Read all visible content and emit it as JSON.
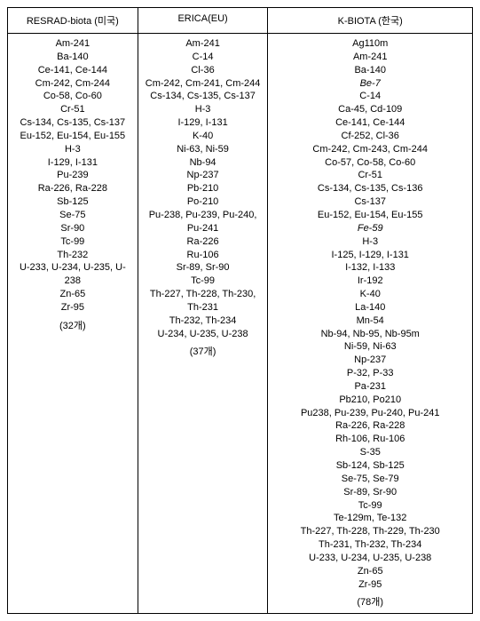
{
  "headers": {
    "col1": "RESRAD-biota (미국)",
    "col2": "ERICA(EU)",
    "col3": "K-BIOTA (한국)"
  },
  "columns": {
    "col1": {
      "items": [
        "Am-241",
        "Ba-140",
        "Ce-141, Ce-144",
        "Cm-242, Cm-244",
        "Co-58, Co-60",
        "Cr-51",
        "Cs-134, Cs-135, Cs-137",
        "Eu-152, Eu-154, Eu-155",
        "H-3",
        "I-129, I-131",
        "Pu-239",
        "Ra-226, Ra-228",
        "Sb-125",
        "Se-75",
        "Sr-90",
        "Tc-99",
        "Th-232",
        "U-233, U-234, U-235, U-238",
        "Zn-65",
        "Zr-95"
      ],
      "count": "(32개)"
    },
    "col2": {
      "items": [
        "Am-241",
        "C-14",
        "Cl-36",
        "Cm-242, Cm-241, Cm-244",
        "Cs-134, Cs-135, Cs-137",
        "H-3",
        "I-129, I-131",
        "K-40",
        "Ni-63, Ni-59",
        "Nb-94",
        "Np-237",
        "Pb-210",
        "Po-210",
        "Pu-238, Pu-239, Pu-240, Pu-241",
        "Ra-226",
        "Ru-106",
        "Sr-89, Sr-90",
        "Tc-99",
        "Th-227, Th-228, Th-230, Th-231",
        "Th-232, Th-234",
        "U-234, U-235, U-238"
      ],
      "count": "(37개)"
    },
    "col3": {
      "items": [
        "Ag110m",
        "Am-241",
        "Ba-140",
        "Be-7",
        "C-14",
        "Ca-45, Cd-109",
        "Ce-141, Ce-144",
        "Cf-252, Cl-36",
        "Cm-242, Cm-243, Cm-244",
        "Co-57, Co-58, Co-60",
        "Cr-51",
        "Cs-134, Cs-135, Cs-136",
        "Cs-137",
        "Eu-152, Eu-154, Eu-155",
        "Fe-59",
        "H-3",
        "I-125, I-129, I-131",
        "I-132, I-133",
        "Ir-192",
        "K-40",
        "La-140",
        "Mn-54",
        "Nb-94, Nb-95, Nb-95m",
        "Ni-59, Ni-63",
        "Np-237",
        "P-32, P-33",
        "Pa-231",
        "Pb210, Po210",
        "Pu238, Pu-239, Pu-240, Pu-241",
        "Ra-226, Ra-228",
        "Rh-106, Ru-106",
        "S-35",
        "Sb-124, Sb-125",
        "Se-75, Se-79",
        "Sr-89, Sr-90",
        "Tc-99",
        "Te-129m, Te-132",
        "Th-227, Th-228, Th-229, Th-230",
        "Th-231, Th-232, Th-234",
        "U-233, U-234, U-235, U-238",
        "Zn-65",
        "Zr-95"
      ],
      "italic_indices": [
        3,
        14
      ],
      "count": "(78개)"
    }
  }
}
